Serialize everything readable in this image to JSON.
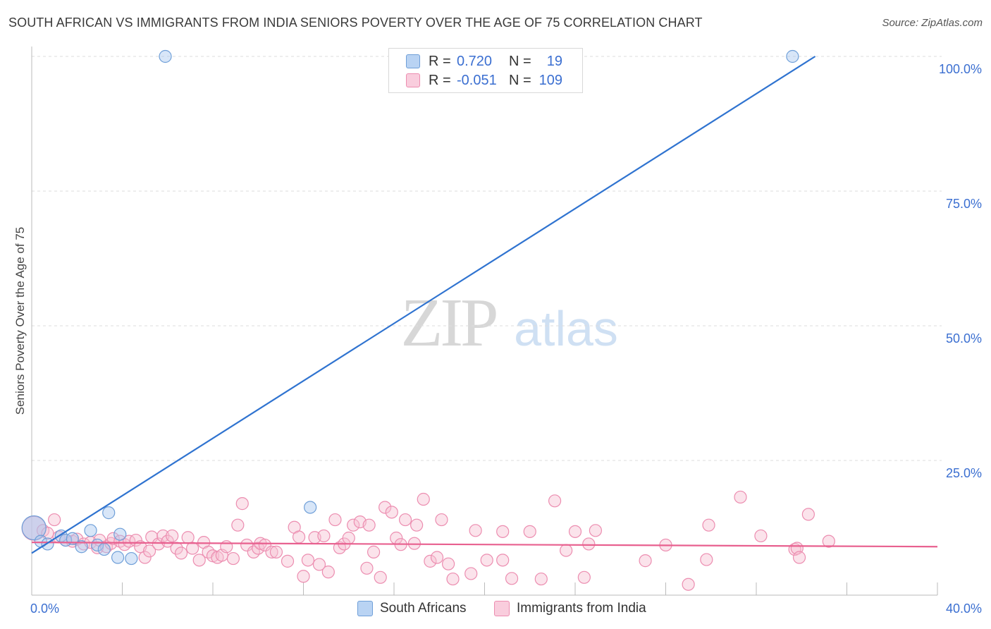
{
  "title": "SOUTH AFRICAN VS IMMIGRANTS FROM INDIA SENIORS POVERTY OVER THE AGE OF 75 CORRELATION CHART",
  "source": "Source: ZipAtlas.com",
  "watermark": {
    "zip": "ZIP",
    "atlas": "atlas"
  },
  "legend": {
    "rows": [
      {
        "r_label": "R =",
        "r_value": "0.720",
        "n_label": "N =",
        "n_value": "19"
      },
      {
        "r_label": "R =",
        "r_value": "-0.051",
        "n_label": "N =",
        "n_value": "109"
      }
    ]
  },
  "bottom_legend": {
    "series1": "South Africans",
    "series2": "Immigrants from India"
  },
  "colors": {
    "blue_fill": "#a8c8f0",
    "blue_stroke": "#6f9fd8",
    "blue_line": "#2f73d0",
    "pink_fill": "#f7c0d3",
    "pink_stroke": "#ec8db0",
    "pink_line": "#e8608f",
    "tick_label": "#3b6fd1",
    "grid": "#dddddd"
  },
  "chart_data": {
    "type": "scatter",
    "title": "SOUTH AFRICAN VS IMMIGRANTS FROM INDIA SENIORS POVERTY OVER THE AGE OF 75 CORRELATION CHART",
    "xlabel": "",
    "ylabel": "Seniors Poverty Over the Age of 75",
    "xlim": [
      0,
      40
    ],
    "ylim": [
      0,
      100
    ],
    "x_tick_labels": [
      "0.0%",
      "40.0%"
    ],
    "y_ticks": [
      25,
      50,
      75,
      100
    ],
    "y_tick_labels": [
      "25.0%",
      "50.0%",
      "75.0%",
      "100.0%"
    ],
    "series": [
      {
        "name": "South Africans",
        "r": 0.72,
        "n": 19,
        "trend": {
          "x": [
            0,
            34.6
          ],
          "y": [
            7.8,
            100
          ]
        },
        "points": [
          {
            "x": 0.1,
            "y": 12.5,
            "large": true
          },
          {
            "x": 0.4,
            "y": 10.0
          },
          {
            "x": 0.7,
            "y": 9.5
          },
          {
            "x": 1.3,
            "y": 11.0
          },
          {
            "x": 1.5,
            "y": 10.2
          },
          {
            "x": 1.8,
            "y": 10.5
          },
          {
            "x": 2.2,
            "y": 9.0
          },
          {
            "x": 2.6,
            "y": 12.0
          },
          {
            "x": 2.9,
            "y": 9.3
          },
          {
            "x": 3.2,
            "y": 8.5
          },
          {
            "x": 3.4,
            "y": 15.3
          },
          {
            "x": 3.8,
            "y": 7.0
          },
          {
            "x": 3.9,
            "y": 11.3
          },
          {
            "x": 4.4,
            "y": 6.8
          },
          {
            "x": 5.9,
            "y": 100
          },
          {
            "x": 12.3,
            "y": 16.3
          },
          {
            "x": 33.6,
            "y": 100
          }
        ]
      },
      {
        "name": "Immigrants from India",
        "r": -0.051,
        "n": 109,
        "trend": {
          "x": [
            0,
            40
          ],
          "y": [
            9.8,
            9.0
          ]
        },
        "points": [
          {
            "x": 0.1,
            "y": 12.4,
            "large": true
          },
          {
            "x": 0.5,
            "y": 12.0
          },
          {
            "x": 0.7,
            "y": 11.5
          },
          {
            "x": 1.0,
            "y": 14.0
          },
          {
            "x": 1.2,
            "y": 10.8
          },
          {
            "x": 1.5,
            "y": 10.2
          },
          {
            "x": 1.8,
            "y": 10.0
          },
          {
            "x": 2.0,
            "y": 10.4
          },
          {
            "x": 2.3,
            "y": 9.5
          },
          {
            "x": 2.6,
            "y": 9.8
          },
          {
            "x": 2.9,
            "y": 8.8
          },
          {
            "x": 3.0,
            "y": 10.2
          },
          {
            "x": 3.3,
            "y": 9.0
          },
          {
            "x": 3.5,
            "y": 9.6
          },
          {
            "x": 3.6,
            "y": 10.5
          },
          {
            "x": 3.9,
            "y": 10.0
          },
          {
            "x": 4.1,
            "y": 9.4
          },
          {
            "x": 4.3,
            "y": 10.0
          },
          {
            "x": 4.6,
            "y": 10.2
          },
          {
            "x": 4.8,
            "y": 9.0
          },
          {
            "x": 5.0,
            "y": 7.0
          },
          {
            "x": 5.2,
            "y": 8.2
          },
          {
            "x": 5.3,
            "y": 10.8
          },
          {
            "x": 5.6,
            "y": 9.5
          },
          {
            "x": 5.8,
            "y": 11.0
          },
          {
            "x": 6.0,
            "y": 10.0
          },
          {
            "x": 6.2,
            "y": 11.0
          },
          {
            "x": 6.4,
            "y": 8.7
          },
          {
            "x": 6.6,
            "y": 7.8
          },
          {
            "x": 6.9,
            "y": 10.7
          },
          {
            "x": 7.1,
            "y": 8.7
          },
          {
            "x": 7.4,
            "y": 6.5
          },
          {
            "x": 7.6,
            "y": 9.8
          },
          {
            "x": 7.8,
            "y": 8.0
          },
          {
            "x": 8.0,
            "y": 7.3
          },
          {
            "x": 8.2,
            "y": 7.0
          },
          {
            "x": 8.4,
            "y": 7.4
          },
          {
            "x": 8.6,
            "y": 9.0
          },
          {
            "x": 8.9,
            "y": 6.8
          },
          {
            "x": 9.1,
            "y": 13.0
          },
          {
            "x": 9.3,
            "y": 17.0
          },
          {
            "x": 9.5,
            "y": 9.3
          },
          {
            "x": 9.8,
            "y": 8.0
          },
          {
            "x": 10.0,
            "y": 8.7
          },
          {
            "x": 10.1,
            "y": 9.6
          },
          {
            "x": 10.3,
            "y": 9.3
          },
          {
            "x": 10.6,
            "y": 8.0
          },
          {
            "x": 10.8,
            "y": 8.0
          },
          {
            "x": 11.3,
            "y": 6.3
          },
          {
            "x": 11.6,
            "y": 12.6
          },
          {
            "x": 11.8,
            "y": 10.8
          },
          {
            "x": 12.0,
            "y": 3.5
          },
          {
            "x": 12.2,
            "y": 6.5
          },
          {
            "x": 12.5,
            "y": 10.7
          },
          {
            "x": 12.7,
            "y": 5.7
          },
          {
            "x": 12.9,
            "y": 11.0
          },
          {
            "x": 13.1,
            "y": 4.3
          },
          {
            "x": 13.4,
            "y": 14.0
          },
          {
            "x": 13.6,
            "y": 8.8
          },
          {
            "x": 13.8,
            "y": 9.5
          },
          {
            "x": 14.0,
            "y": 10.6
          },
          {
            "x": 14.2,
            "y": 13.0
          },
          {
            "x": 14.5,
            "y": 13.6
          },
          {
            "x": 14.8,
            "y": 5.0
          },
          {
            "x": 14.9,
            "y": 13.0
          },
          {
            "x": 15.1,
            "y": 8.0
          },
          {
            "x": 15.4,
            "y": 3.3
          },
          {
            "x": 15.6,
            "y": 16.3
          },
          {
            "x": 15.9,
            "y": 15.4
          },
          {
            "x": 16.1,
            "y": 10.6
          },
          {
            "x": 16.3,
            "y": 9.4
          },
          {
            "x": 16.5,
            "y": 14.0
          },
          {
            "x": 16.9,
            "y": 9.6
          },
          {
            "x": 17.0,
            "y": 13.0
          },
          {
            "x": 17.3,
            "y": 17.8
          },
          {
            "x": 17.6,
            "y": 6.3
          },
          {
            "x": 17.9,
            "y": 7.0
          },
          {
            "x": 18.1,
            "y": 14.0
          },
          {
            "x": 18.4,
            "y": 5.8
          },
          {
            "x": 18.6,
            "y": 3.0
          },
          {
            "x": 19.4,
            "y": 4.0
          },
          {
            "x": 19.6,
            "y": 12.0
          },
          {
            "x": 20.1,
            "y": 6.5
          },
          {
            "x": 20.8,
            "y": 11.8
          },
          {
            "x": 20.8,
            "y": 6.5
          },
          {
            "x": 21.2,
            "y": 3.1
          },
          {
            "x": 22.0,
            "y": 11.8
          },
          {
            "x": 22.5,
            "y": 3.0
          },
          {
            "x": 23.1,
            "y": 17.5
          },
          {
            "x": 23.6,
            "y": 8.3
          },
          {
            "x": 24.0,
            "y": 11.8
          },
          {
            "x": 24.4,
            "y": 3.3
          },
          {
            "x": 24.6,
            "y": 9.5
          },
          {
            "x": 24.9,
            "y": 12.0
          },
          {
            "x": 27.1,
            "y": 6.4
          },
          {
            "x": 28.0,
            "y": 9.3
          },
          {
            "x": 29.0,
            "y": 2.0
          },
          {
            "x": 29.8,
            "y": 6.6
          },
          {
            "x": 29.9,
            "y": 13.0
          },
          {
            "x": 31.3,
            "y": 18.2
          },
          {
            "x": 32.2,
            "y": 11.0
          },
          {
            "x": 33.7,
            "y": 8.5
          },
          {
            "x": 33.8,
            "y": 8.7
          },
          {
            "x": 33.9,
            "y": 7.0
          },
          {
            "x": 34.3,
            "y": 15.0
          },
          {
            "x": 35.2,
            "y": 10.0
          }
        ]
      }
    ]
  }
}
